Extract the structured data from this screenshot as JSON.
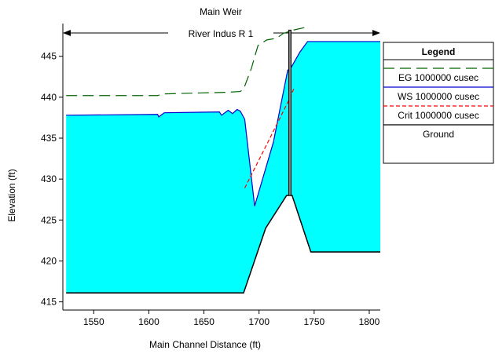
{
  "chart_data": {
    "type": "area",
    "title": "Main Weir",
    "subtitle": "River Indus R 1",
    "xlabel": "Main Channel Distance (ft)",
    "ylabel": "Elevation (ft)",
    "xlim": [
      1522,
      1810
    ],
    "ylim": [
      414,
      449
    ],
    "x_ticks": [
      1550,
      1600,
      1650,
      1700,
      1750,
      1800
    ],
    "y_ticks": [
      415,
      420,
      425,
      430,
      435,
      440,
      445
    ],
    "grid": false,
    "legend_position": "right",
    "legend_title": "Legend",
    "fill_color": "#00ffff",
    "series": [
      {
        "name": "EG  1000000 cusec",
        "style": "long-dash",
        "color": "#006400",
        "x": [
          1525,
          1608,
          1612,
          1670,
          1683,
          1686,
          1693,
          1699,
          1707,
          1716,
          1722,
          1731,
          1741
        ],
        "y": [
          440.2,
          440.2,
          440.4,
          440.6,
          440.7,
          441.0,
          443.5,
          446.3,
          447.0,
          447.2,
          447.8,
          448.2,
          448.5
        ]
      },
      {
        "name": "WS  1000000 cusec",
        "style": "solid",
        "color": "#0000cd",
        "x": [
          1525,
          1608,
          1609,
          1612,
          1614,
          1664,
          1666,
          1670,
          1672,
          1676,
          1680,
          1683,
          1687,
          1696,
          1713,
          1726,
          1729,
          1737,
          1744,
          1810
        ],
        "y": [
          437.8,
          437.9,
          437.6,
          437.9,
          438.1,
          438.2,
          437.8,
          438.2,
          438.4,
          438.0,
          438.5,
          438.3,
          437.3,
          426.7,
          434.5,
          443.3,
          443.6,
          445.5,
          446.8,
          446.8
        ]
      },
      {
        "name": "Crit  1000000 cusec",
        "style": "dash",
        "color": "#ff0000",
        "x": [
          1687,
          1708,
          1728,
          1732
        ],
        "y": [
          428.9,
          434.5,
          439.9,
          441.2
        ]
      },
      {
        "name": "Ground",
        "style": "solid",
        "color": "#000000",
        "x": [
          1525,
          1686,
          1706,
          1725,
          1730,
          1747,
          1810
        ],
        "y": [
          416.1,
          416.1,
          424.0,
          428.0,
          428.0,
          421.1,
          421.1
        ]
      }
    ],
    "weir_structure": {
      "x": 1728,
      "top": 448.2,
      "bottom": 428.0
    }
  }
}
